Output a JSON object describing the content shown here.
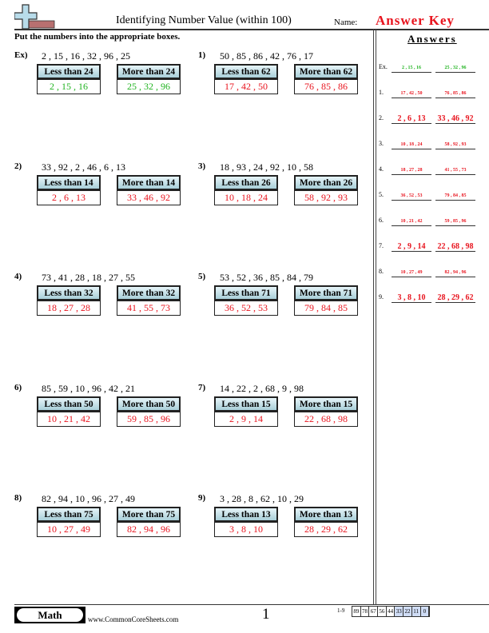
{
  "header": {
    "title": "Identifying Number Value (within 100)",
    "name_label": "Name:",
    "answer_key": "Answer Key",
    "instructions": "Put the numbers into the appropriate boxes."
  },
  "colors": {
    "example": "#22b422",
    "answers": "#e8141e",
    "header_grad_top": "#e6f4f8",
    "header_grad_bottom": "#a9cfd9"
  },
  "problems": [
    {
      "label": "Ex)",
      "numbers": "2 , 15 , 16 , 32 , 96 , 25",
      "less": "Less than 24",
      "more": "More than 24",
      "less_ans": "2 , 15 , 16",
      "more_ans": "25 , 32 , 96",
      "example": true
    },
    {
      "label": "1)",
      "numbers": "50 , 85 , 86 , 42 , 76 , 17",
      "less": "Less than 62",
      "more": "More than 62",
      "less_ans": "17 , 42 , 50",
      "more_ans": "76 , 85 , 86"
    },
    {
      "label": "2)",
      "numbers": "33 , 92 , 2 , 46 , 6 , 13",
      "less": "Less than 14",
      "more": "More than 14",
      "less_ans": "2 , 6 , 13",
      "more_ans": "33 , 46 , 92"
    },
    {
      "label": "3)",
      "numbers": "18 , 93 , 24 , 92 , 10 , 58",
      "less": "Less than 26",
      "more": "More than 26",
      "less_ans": "10 , 18 , 24",
      "more_ans": "58 , 92 , 93"
    },
    {
      "label": "4)",
      "numbers": "73 , 41 , 28 , 18 , 27 , 55",
      "less": "Less than 32",
      "more": "More than 32",
      "less_ans": "18 , 27 , 28",
      "more_ans": "41 , 55 , 73"
    },
    {
      "label": "5)",
      "numbers": "53 , 52 , 36 , 85 , 84 , 79",
      "less": "Less than 71",
      "more": "More than 71",
      "less_ans": "36 , 52 , 53",
      "more_ans": "79 , 84 , 85"
    },
    {
      "label": "6)",
      "numbers": "85 , 59 , 10 , 96 , 42 , 21",
      "less": "Less than 50",
      "more": "More than 50",
      "less_ans": "10 , 21 , 42",
      "more_ans": "59 , 85 , 96"
    },
    {
      "label": "7)",
      "numbers": "14 , 22 , 2 , 68 , 9 , 98",
      "less": "Less than 15",
      "more": "More than 15",
      "less_ans": "2 , 9 , 14",
      "more_ans": "22 , 68 , 98"
    },
    {
      "label": "8)",
      "numbers": "82 , 94 , 10 , 96 , 27 , 49",
      "less": "Less than 75",
      "more": "More than 75",
      "less_ans": "10 , 27 , 49",
      "more_ans": "82 , 94 , 96"
    },
    {
      "label": "9)",
      "numbers": "3 , 28 , 8 , 62 , 10 , 29",
      "less": "Less than 13",
      "more": "More than 13",
      "less_ans": "3 , 8 , 10",
      "more_ans": "28 , 29 , 62"
    }
  ],
  "answer_key": {
    "title": "Answers",
    "rows": [
      {
        "label": "Ex.",
        "a": "2 , 15 , 16",
        "b": "25 , 32 , 96"
      },
      {
        "label": "1.",
        "a": "17 , 42 , 50",
        "b": "76 , 85 , 86"
      },
      {
        "label": "2.",
        "a": "2 , 6 , 13",
        "b": "33 , 46 , 92"
      },
      {
        "label": "3.",
        "a": "10 , 18 , 24",
        "b": "58 , 92 , 93"
      },
      {
        "label": "4.",
        "a": "18 , 27 , 28",
        "b": "41 , 55 , 73"
      },
      {
        "label": "5.",
        "a": "36 , 52 , 53",
        "b": "79 , 84 , 85"
      },
      {
        "label": "6.",
        "a": "10 , 21 , 42",
        "b": "59 , 85 , 96"
      },
      {
        "label": "7.",
        "a": "2 , 9 , 14",
        "b": "22 , 68 , 98"
      },
      {
        "label": "8.",
        "a": "10 , 27 , 49",
        "b": "82 , 94 , 96"
      },
      {
        "label": "9.",
        "a": "3 , 8 , 10",
        "b": "28 , 29 , 62"
      }
    ]
  },
  "footer": {
    "subject": "Math",
    "site": "www.CommonCoreSheets.com",
    "page": "1",
    "score_label": "1-9",
    "scores": [
      "89",
      "78",
      "67",
      "56",
      "44",
      "33",
      "22",
      "11",
      "0"
    ]
  }
}
